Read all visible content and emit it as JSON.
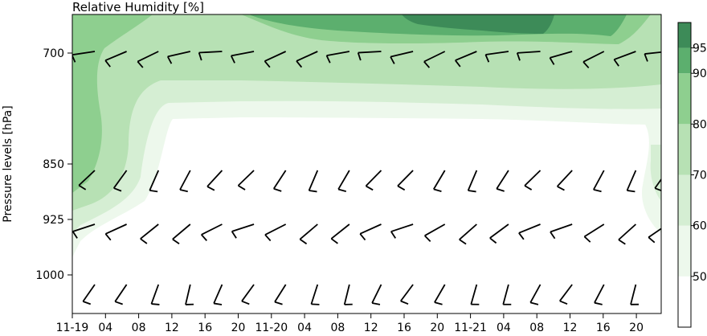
{
  "chart_data": {
    "type": "heatmap",
    "title": "Relative Humidity [%]",
    "ylabel": "Pressure levels [hPa]",
    "xlabel": "",
    "y_levels": [
      700,
      850,
      925,
      1000
    ],
    "y_tick_labels": [
      "700",
      "850",
      "925",
      "1000"
    ],
    "x_tick_labels": [
      "11-19",
      "04",
      "08",
      "12",
      "16",
      "20",
      "11-20",
      "04",
      "08",
      "12",
      "16",
      "20",
      "11-21",
      "04",
      "08",
      "12",
      "16",
      "20"
    ],
    "time_steps_hours": 3,
    "colorbar": {
      "ticks": [
        50,
        60,
        70,
        80,
        90,
        95
      ],
      "bounds": [
        40,
        50,
        60,
        70,
        80,
        90,
        95,
        100
      ],
      "colors": [
        "#ffffff",
        "#edf8ec",
        "#d5eed3",
        "#b7e1b4",
        "#8ecf8f",
        "#5caf6e",
        "#3d8b58"
      ]
    },
    "humidity_bands": [
      {
        "min": 95,
        "max": 100,
        "region": "upper-right near 700 hPa, 11-20 12 to 11-21 12"
      },
      {
        "min": 90,
        "max": 95,
        "region": "upper, above 700 hPa from 11-20 04 to 11-21 16"
      },
      {
        "min": 80,
        "max": 90,
        "region": "top layer 700 hPa and left edge 850-925 hPa"
      },
      {
        "min": 70,
        "max": 80,
        "region": "layer between 700 and 775 hPa"
      },
      {
        "min": 60,
        "max": 70,
        "region": "layer around 775-800 hPa"
      },
      {
        "min": 50,
        "max": 60,
        "region": "thin layer around 800-825 hPa"
      },
      {
        "min": 40,
        "max": 50,
        "region": "below 825 hPa"
      }
    ],
    "wind_barbs": {
      "note": "barbs drawn at each level every 3 h",
      "levels": [
        700,
        850,
        925,
        1000
      ]
    }
  }
}
